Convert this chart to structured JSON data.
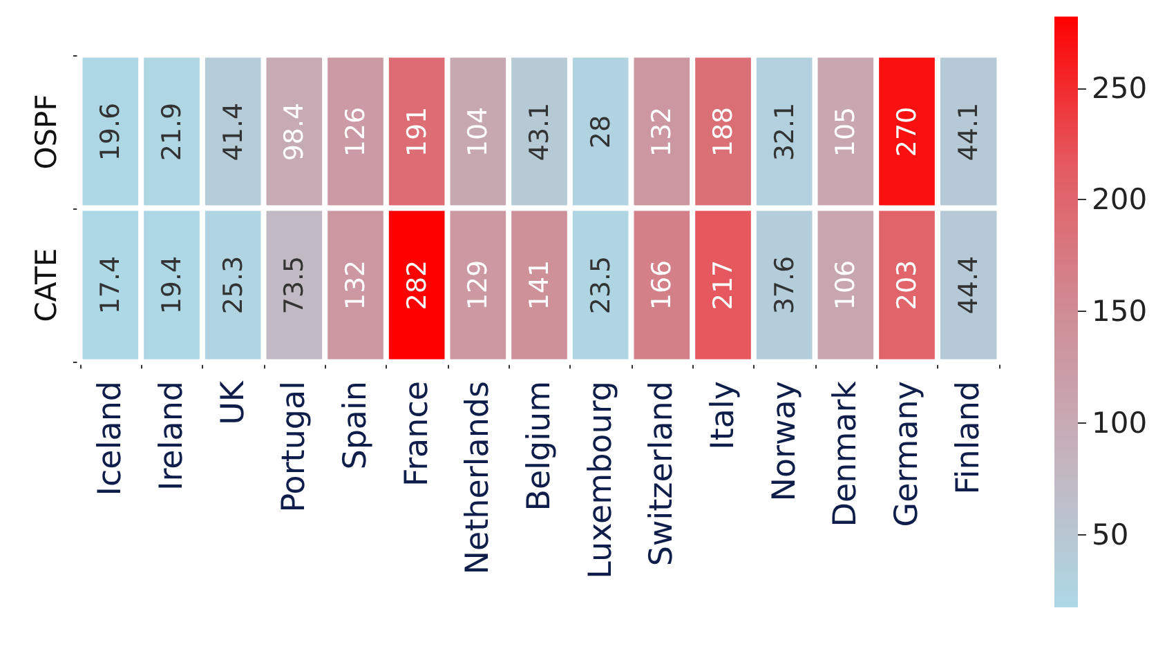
{
  "chart_data": {
    "type": "heatmap",
    "categories": [
      "Iceland",
      "Ireland",
      "UK",
      "Portugal",
      "Spain",
      "France",
      "Netherlands",
      "Belgium",
      "Luxembourg",
      "Switzerland",
      "Italy",
      "Norway",
      "Denmark",
      "Germany",
      "Finland"
    ],
    "y_categories": [
      "OSPF",
      "CATE"
    ],
    "cells": [
      [
        19.6,
        21.9,
        41.4,
        98.4,
        126,
        191,
        104,
        43.1,
        28,
        132,
        188,
        32.1,
        105,
        270,
        44.1
      ],
      [
        17.4,
        19.4,
        25.3,
        73.5,
        132,
        282,
        129,
        141,
        23.5,
        166,
        217,
        37.6,
        106,
        203,
        44.4
      ]
    ],
    "data_labels": true,
    "clim": [
      17.4,
      282
    ],
    "cticks": [
      50,
      100,
      150,
      200,
      250
    ]
  }
}
